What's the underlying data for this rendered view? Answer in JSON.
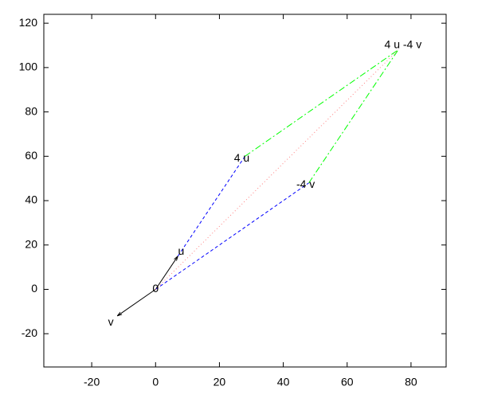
{
  "chart_data": {
    "type": "vector",
    "xlim": [
      -35,
      91
    ],
    "ylim": [
      -35,
      124
    ],
    "xticks": [
      -20,
      0,
      20,
      40,
      60,
      80
    ],
    "yticks": [
      -20,
      0,
      20,
      40,
      60,
      80,
      100,
      120
    ],
    "segments": [
      {
        "x": [
          0,
          7
        ],
        "y": [
          0,
          15
        ],
        "color": "#000000",
        "style": "solid",
        "arrow": true
      },
      {
        "x": [
          0,
          -12
        ],
        "y": [
          0,
          -12
        ],
        "color": "#000000",
        "style": "solid",
        "arrow": true
      },
      {
        "x": [
          7,
          28
        ],
        "y": [
          15,
          60
        ],
        "color": "#0000ff",
        "style": "dashed",
        "arrow": false
      },
      {
        "x": [
          0,
          48
        ],
        "y": [
          0,
          48
        ],
        "color": "#0000ff",
        "style": "dashed",
        "arrow": false
      },
      {
        "x": [
          28,
          76
        ],
        "y": [
          60,
          108
        ],
        "color": "#00ff00",
        "style": "dashdot",
        "arrow": false
      },
      {
        "x": [
          48,
          76
        ],
        "y": [
          48,
          108
        ],
        "color": "#00ff00",
        "style": "dashdot",
        "arrow": false
      },
      {
        "x": [
          0,
          76
        ],
        "y": [
          0,
          108
        ],
        "color": "#ff8080",
        "style": "dotted",
        "arrow": false
      }
    ],
    "labels": [
      {
        "text": "0",
        "x": 0,
        "y": 0
      },
      {
        "text": "u",
        "x": 8,
        "y": 17
      },
      {
        "text": "v",
        "x": -14,
        "y": -15
      },
      {
        "text": "4 u",
        "x": 27,
        "y": 59
      },
      {
        "text": "-4 v",
        "x": 47,
        "y": 47
      },
      {
        "text": "4 u -4 v",
        "x": 77.5,
        "y": 110
      }
    ]
  }
}
